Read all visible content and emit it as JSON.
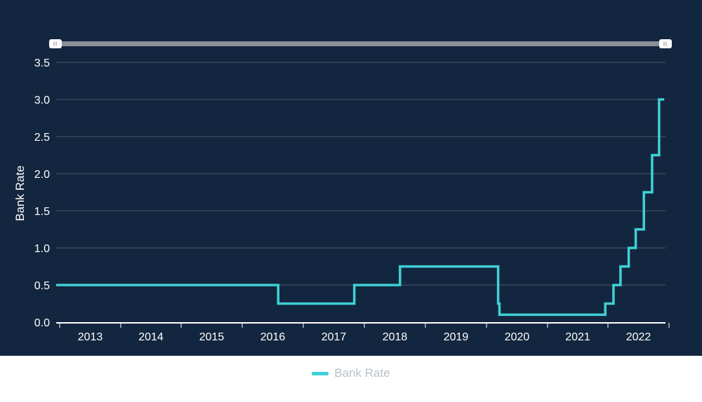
{
  "colors": {
    "panel_bg": "#13263f",
    "line": "#3ed1d6",
    "grid": "#4a5a70",
    "axis": "#ffffff",
    "text": "#ffffff",
    "scroller": "#8a8f98",
    "legend_text": "#b9c0c9"
  },
  "chart_data": {
    "type": "line",
    "step": true,
    "title": "",
    "xlabel": "",
    "ylabel": "Bank Rate",
    "xlim": [
      "2012-08-01",
      "2022-09-30"
    ],
    "ylim": [
      0,
      3.5
    ],
    "yticks": [
      "0.0",
      "0.5",
      "1.0",
      "1.5",
      "2.0",
      "2.5",
      "3.0",
      "3.5"
    ],
    "xticks": [
      "2013",
      "2014",
      "2015",
      "2016",
      "2017",
      "2018",
      "2019",
      "2020",
      "2021",
      "2022"
    ],
    "grid": true,
    "legend": {
      "position": "bottom-center",
      "entries": [
        "Bank Rate"
      ]
    },
    "series": [
      {
        "name": "Bank Rate",
        "points": [
          [
            "2012-08-01",
            0.5
          ],
          [
            "2016-08-04",
            0.25
          ],
          [
            "2017-11-02",
            0.5
          ],
          [
            "2018-08-02",
            0.75
          ],
          [
            "2020-03-11",
            0.25
          ],
          [
            "2020-03-19",
            0.1
          ],
          [
            "2021-12-16",
            0.25
          ],
          [
            "2022-02-03",
            0.5
          ],
          [
            "2022-03-17",
            0.75
          ],
          [
            "2022-05-05",
            1.0
          ],
          [
            "2022-06-16",
            1.25
          ],
          [
            "2022-08-04",
            1.75
          ],
          [
            "2022-09-22",
            2.25
          ],
          [
            "2022-11-03",
            3.0
          ],
          [
            "2022-11-30",
            3.0
          ]
        ]
      }
    ]
  }
}
